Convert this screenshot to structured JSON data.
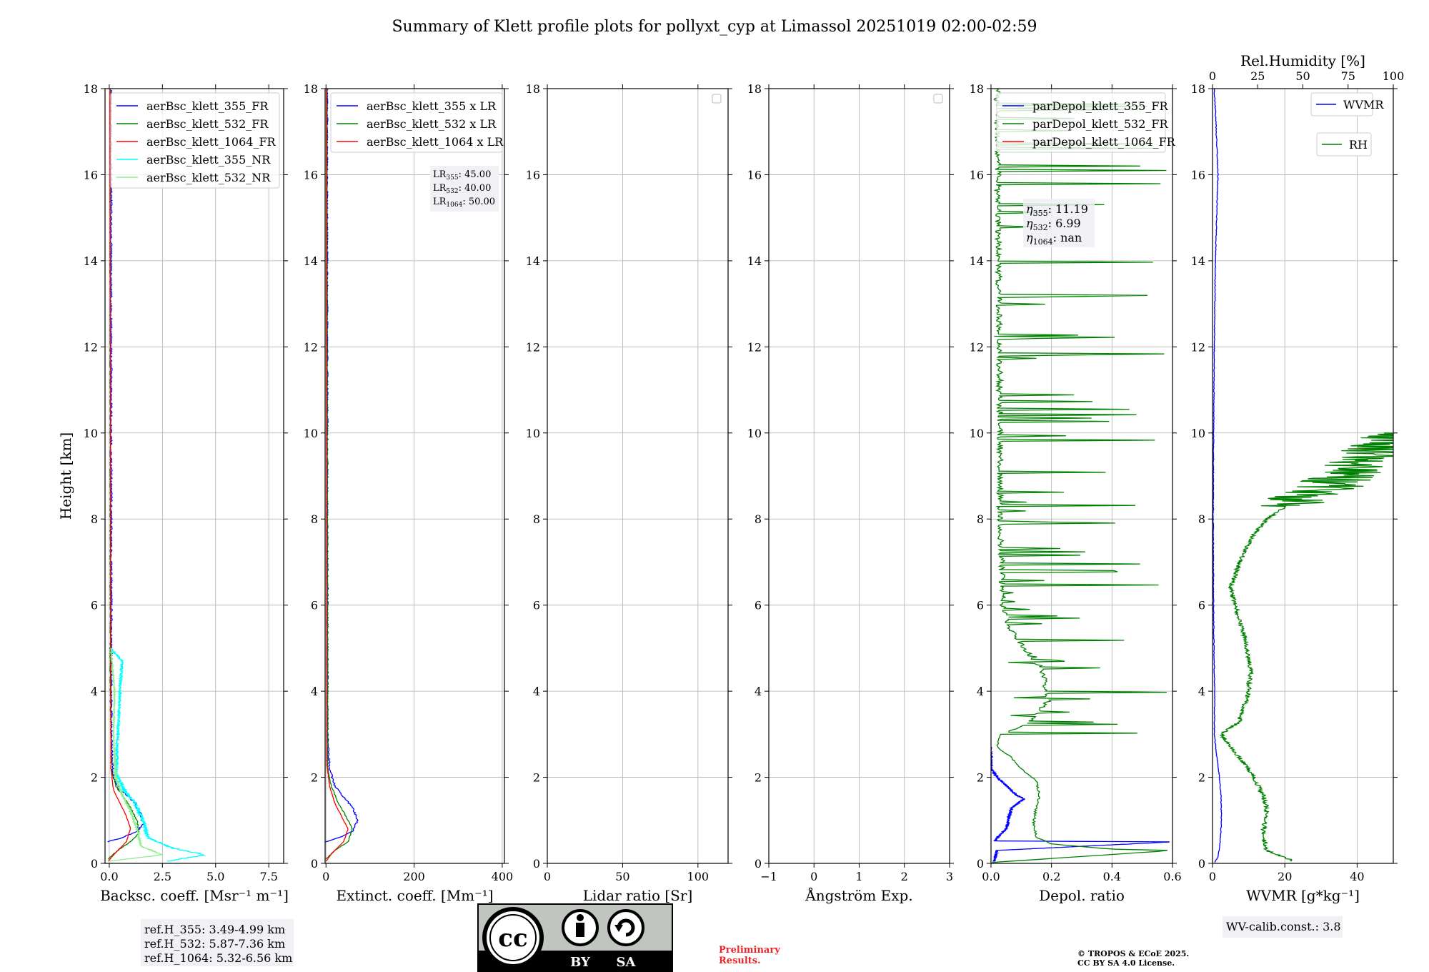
{
  "title": "Summary of Klett profile plots for pollyxt_cyp at Limassol 20251019 02:00-02:59",
  "colors": {
    "c355": "#0000ff",
    "c532": "#008000",
    "c1064": "#ff0000",
    "c355nr": "#00ffff",
    "c532nr": "#90ee90",
    "prelim": "#e8262a"
  },
  "chart_data": [
    {
      "id": "backscatter",
      "type": "line",
      "xlabel": "Backsc. coeff. [Msr⁻¹ m⁻¹]",
      "ylabel": "Height [km]",
      "xlim": [
        -0.2,
        8.2
      ],
      "ylim": [
        0,
        18
      ],
      "xticks": [
        0.0,
        2.5,
        5.0,
        7.5
      ],
      "xtick_labels": [
        "0.0",
        "2.5",
        "5.0",
        "7.5"
      ],
      "yticks": [
        0,
        2,
        4,
        6,
        8,
        10,
        12,
        14,
        16,
        18
      ],
      "legend": [
        "aerBsc_klett_355_FR",
        "aerBsc_klett_532_FR",
        "aerBsc_klett_1064_FR",
        "aerBsc_klett_355_NR",
        "aerBsc_klett_532_NR"
      ],
      "annotation": [
        "ref.H_355: 3.49-4.99 km",
        "ref.H_532: 5.87-7.36 km",
        "ref.H_1064: 5.32-6.56 km"
      ],
      "series": [
        {
          "name": "aerBsc_klett_355_FR",
          "color": "#0000ff",
          "noise": 0.15,
          "points": [
            [
              -0.1,
              0.5
            ],
            [
              0.6,
              0.6
            ],
            [
              1.3,
              0.75
            ],
            [
              1.6,
              0.9
            ],
            [
              1.5,
              1.1
            ],
            [
              1.2,
              1.4
            ],
            [
              0.9,
              1.55
            ],
            [
              0.5,
              1.7
            ],
            [
              0.3,
              1.9
            ],
            [
              0.15,
              2.2
            ],
            [
              0.1,
              3
            ],
            [
              0.08,
              18
            ]
          ]
        },
        {
          "name": "aerBsc_klett_532_FR",
          "color": "#008000",
          "noise": 0.06,
          "points": [
            [
              -0.05,
              0.1
            ],
            [
              0.4,
              0.3
            ],
            [
              1.0,
              0.5
            ],
            [
              1.4,
              0.7
            ],
            [
              1.3,
              1.0
            ],
            [
              1.0,
              1.3
            ],
            [
              0.6,
              1.6
            ],
            [
              0.3,
              1.8
            ],
            [
              0.1,
              2.2
            ],
            [
              0.05,
              4
            ],
            [
              0.04,
              18
            ]
          ]
        },
        {
          "name": "aerBsc_klett_1064_FR",
          "color": "#ff0000",
          "noise": 0.02,
          "points": [
            [
              -0.05,
              0.05
            ],
            [
              0.3,
              0.25
            ],
            [
              0.8,
              0.5
            ],
            [
              1.0,
              0.8
            ],
            [
              0.8,
              1.1
            ],
            [
              0.5,
              1.4
            ],
            [
              0.2,
              1.7
            ],
            [
              0.08,
              2.2
            ],
            [
              0.03,
              18
            ]
          ]
        },
        {
          "name": "aerBsc_klett_355_NR",
          "color": "#00ffff",
          "noise": 0.2,
          "noise_top": 5.0,
          "points": [
            [
              2.7,
              0.05
            ],
            [
              4.5,
              0.2
            ],
            [
              3.0,
              0.35
            ],
            [
              1.8,
              0.6
            ],
            [
              1.6,
              1.0
            ],
            [
              1.2,
              1.4
            ],
            [
              0.7,
              1.7
            ],
            [
              0.3,
              2.1
            ],
            [
              0.4,
              3.0
            ],
            [
              0.5,
              4.0
            ],
            [
              0.6,
              4.7
            ],
            [
              0.05,
              5.0
            ]
          ]
        },
        {
          "name": "aerBsc_klett_532_NR",
          "color": "#90ee90",
          "noise": 0.1,
          "noise_top": 5.0,
          "points": [
            [
              0.0,
              0.05
            ],
            [
              2.5,
              0.2
            ],
            [
              1.5,
              0.4
            ],
            [
              1.3,
              0.8
            ],
            [
              1.0,
              1.2
            ],
            [
              0.6,
              1.6
            ],
            [
              0.3,
              2.0
            ],
            [
              0.2,
              3.0
            ],
            [
              0.25,
              4.0
            ],
            [
              0.1,
              4.8
            ]
          ]
        }
      ]
    },
    {
      "id": "extinction",
      "type": "line",
      "xlabel": "Extinct. coeff. [Mm⁻¹]",
      "ylabel": "",
      "xlim": [
        -2,
        405
      ],
      "ylim": [
        0,
        18
      ],
      "xticks": [
        0,
        200,
        400
      ],
      "xtick_labels": [
        "0",
        "200",
        "400"
      ],
      "yticks": [
        0,
        2,
        4,
        6,
        8,
        10,
        12,
        14,
        16,
        18
      ],
      "legend": [
        "aerBsc_klett_355 x LR",
        "aerBsc_klett_532 x LR",
        "aerBsc_klett_1064 x LR"
      ],
      "annotation": [
        "LR355: 45.00",
        "LR532: 40.00",
        "LR1064: 50.00"
      ],
      "series": [
        {
          "name": "aerBsc_klett_355 x LR",
          "color": "#0000ff",
          "noise": 4,
          "points": [
            [
              0,
              0.5
            ],
            [
              30,
              0.6
            ],
            [
              60,
              0.75
            ],
            [
              72,
              1.0
            ],
            [
              60,
              1.3
            ],
            [
              40,
              1.55
            ],
            [
              20,
              1.8
            ],
            [
              8,
              2.2
            ],
            [
              4,
              3
            ],
            [
              3,
              18
            ]
          ]
        },
        {
          "name": "aerBsc_klett_532 x LR",
          "color": "#008000",
          "noise": 2,
          "points": [
            [
              0,
              0.1
            ],
            [
              20,
              0.3
            ],
            [
              50,
              0.5
            ],
            [
              60,
              0.8
            ],
            [
              45,
              1.1
            ],
            [
              28,
              1.4
            ],
            [
              12,
              1.8
            ],
            [
              4,
              2.2
            ],
            [
              2,
              18
            ]
          ]
        },
        {
          "name": "aerBsc_klett_1064 x LR",
          "color": "#ff0000",
          "noise": 1,
          "points": [
            [
              0,
              0.05
            ],
            [
              15,
              0.25
            ],
            [
              40,
              0.5
            ],
            [
              50,
              0.8
            ],
            [
              35,
              1.1
            ],
            [
              20,
              1.4
            ],
            [
              8,
              1.8
            ],
            [
              2,
              2.3
            ],
            [
              1,
              18
            ]
          ]
        }
      ]
    },
    {
      "id": "lidar_ratio",
      "type": "line",
      "xlabel": "Lidar ratio [Sr]",
      "ylabel": "",
      "xlim": [
        0,
        120
      ],
      "ylim": [
        0,
        18
      ],
      "xticks": [
        0,
        50,
        100
      ],
      "xtick_labels": [
        "0",
        "50",
        "100"
      ],
      "yticks": [
        0,
        2,
        4,
        6,
        8,
        10,
        12,
        14,
        16,
        18
      ],
      "legend": [],
      "series": []
    },
    {
      "id": "angstrom",
      "type": "line",
      "xlabel": "Ångström Exp.",
      "ylabel": "",
      "xlim": [
        -1,
        3
      ],
      "ylim": [
        0,
        18
      ],
      "xticks": [
        -1,
        0,
        1,
        2,
        3
      ],
      "xtick_labels": [
        "−1",
        "0",
        "1",
        "2",
        "3"
      ],
      "yticks": [
        0,
        2,
        4,
        6,
        8,
        10,
        12,
        14,
        16,
        18
      ],
      "legend": [],
      "series": []
    },
    {
      "id": "depol",
      "type": "line",
      "xlabel": "Depol. ratio",
      "ylabel": "",
      "xlim": [
        0,
        0.6
      ],
      "ylim": [
        0,
        18
      ],
      "xticks": [
        0.0,
        0.2,
        0.4,
        0.6
      ],
      "xtick_labels": [
        "0.0",
        "0.2",
        "0.4",
        "0.6"
      ],
      "yticks": [
        0,
        2,
        4,
        6,
        8,
        10,
        12,
        14,
        16,
        18
      ],
      "legend": [
        "parDepol_klett_355_FR",
        "parDepol_klett_532_FR",
        "parDepol_klett_1064_FR"
      ],
      "annotation": [
        "η355: 11.19",
        "η532: 6.99",
        "η1064: nan"
      ],
      "series": [
        {
          "name": "parDepol_klett_355_FR",
          "color": "#0000ff",
          "noise": 0.01,
          "spikes_from": 2.7,
          "points": [
            [
              0.01,
              0.05
            ],
            [
              0.02,
              0.3
            ],
            [
              0.6,
              0.5
            ],
            [
              0.01,
              0.52
            ],
            [
              0.05,
              0.8
            ],
            [
              0.06,
              1.1
            ],
            [
              0.07,
              1.3
            ],
            [
              0.11,
              1.5
            ],
            [
              0.08,
              1.6
            ],
            [
              0.06,
              1.75
            ],
            [
              0.02,
              2.0
            ],
            [
              0.0,
              2.2
            ],
            [
              0.0,
              2.7
            ]
          ]
        },
        {
          "name": "parDepol_klett_532_FR",
          "color": "#008000",
          "noise": 0.008,
          "spikes_from": 3.0,
          "points": [
            [
              0.0,
              0.02
            ],
            [
              0.6,
              0.3
            ],
            [
              0.4,
              0.33
            ],
            [
              0.2,
              0.45
            ],
            [
              0.15,
              0.6
            ],
            [
              0.14,
              0.9
            ],
            [
              0.15,
              1.3
            ],
            [
              0.16,
              1.6
            ],
            [
              0.15,
              1.9
            ],
            [
              0.1,
              2.2
            ],
            [
              0.06,
              2.5
            ],
            [
              0.02,
              2.7
            ],
            [
              0.03,
              3.0
            ],
            [
              0.12,
              3.3
            ],
            [
              0.18,
              3.8
            ],
            [
              0.16,
              4.5
            ],
            [
              0.1,
              5.0
            ],
            [
              0.05,
              5.5
            ],
            [
              0.03,
              6.0
            ],
            [
              0.02,
              8.0
            ],
            [
              0.02,
              10.0
            ],
            [
              0.01,
              18.0
            ]
          ]
        },
        {
          "name": "parDepol_klett_1064_FR",
          "color": "#ff0000",
          "noise": 0,
          "points": []
        }
      ]
    },
    {
      "id": "wvmr",
      "type": "line",
      "xlabel": "WVMR [g*kg⁻¹]",
      "ylabel": "",
      "xlim": [
        0,
        50
      ],
      "ylim": [
        0,
        18
      ],
      "xticks": [
        0,
        20,
        40
      ],
      "xtick_labels": [
        "0",
        "20",
        "40"
      ],
      "yticks": [
        0,
        2,
        4,
        6,
        8,
        10,
        12,
        14,
        16,
        18
      ],
      "top_axis": {
        "label": "Rel.Humidity [%]",
        "xlim": [
          0,
          100
        ],
        "xticks": [
          0,
          25,
          50,
          75,
          100
        ],
        "xtick_labels": [
          "0",
          "25",
          "50",
          "75",
          "100"
        ]
      },
      "legend": [
        "WVMR",
        "RH"
      ],
      "annotation": [
        "WV-calib.const.: 3.8"
      ],
      "series": [
        {
          "name": "WVMR",
          "color": "#0000ff",
          "axis": "bottom",
          "noise": 0.2,
          "points": [
            [
              0.5,
              0.02
            ],
            [
              1.5,
              0.15
            ],
            [
              2.0,
              0.4
            ],
            [
              2.5,
              1.0
            ],
            [
              2.3,
              1.6
            ],
            [
              1.8,
              2.1
            ],
            [
              1.0,
              2.6
            ],
            [
              0.5,
              3.0
            ],
            [
              0.6,
              4.0
            ],
            [
              0.4,
              5.0
            ],
            [
              0.3,
              6.0
            ],
            [
              0.2,
              8.0
            ],
            [
              0.3,
              10.0
            ],
            [
              0.5,
              12.0
            ],
            [
              0.8,
              14.0
            ],
            [
              1.5,
              16.0
            ],
            [
              0.8,
              17.5
            ],
            [
              0.5,
              18.0
            ]
          ]
        },
        {
          "name": "RH",
          "color": "#008000",
          "axis": "top",
          "noise": 2.5,
          "rh_top": 10,
          "points": [
            [
              45,
              0.05
            ],
            [
              30,
              0.3
            ],
            [
              28,
              0.7
            ],
            [
              30,
              1.3
            ],
            [
              28,
              1.6
            ],
            [
              20,
              2.2
            ],
            [
              10,
              2.7
            ],
            [
              5,
              3.0
            ],
            [
              15,
              3.3
            ],
            [
              20,
              4.0
            ],
            [
              21,
              4.5
            ],
            [
              18,
              5.2
            ],
            [
              14,
              5.8
            ],
            [
              10,
              6.4
            ],
            [
              15,
              7.0
            ],
            [
              22,
              7.6
            ],
            [
              30,
              8.0
            ],
            [
              45,
              8.4
            ],
            [
              65,
              8.8
            ],
            [
              80,
              9.2
            ],
            [
              90,
              9.6
            ],
            [
              100,
              9.9
            ]
          ]
        }
      ]
    }
  ]
}
